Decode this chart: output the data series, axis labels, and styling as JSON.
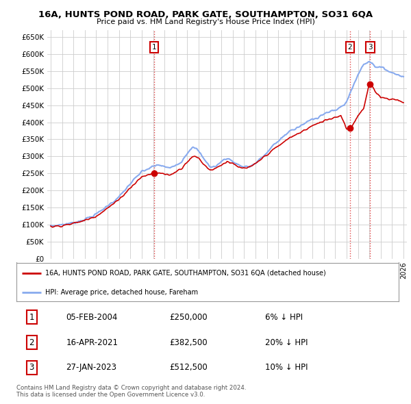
{
  "title1": "16A, HUNTS POND ROAD, PARK GATE, SOUTHAMPTON, SO31 6QA",
  "title2": "Price paid vs. HM Land Registry's House Price Index (HPI)",
  "ylabel_ticks": [
    "£0",
    "£50K",
    "£100K",
    "£150K",
    "£200K",
    "£250K",
    "£300K",
    "£350K",
    "£400K",
    "£450K",
    "£500K",
    "£550K",
    "£600K",
    "£650K"
  ],
  "ytick_values": [
    0,
    50000,
    100000,
    150000,
    200000,
    250000,
    300000,
    350000,
    400000,
    450000,
    500000,
    550000,
    600000,
    650000
  ],
  "xlim_start": 1994.7,
  "xlim_end": 2026.3,
  "ylim_min": 0,
  "ylim_max": 670000,
  "sale_dates": [
    2004.09,
    2021.29,
    2023.07
  ],
  "sale_prices": [
    250000,
    382500,
    512500
  ],
  "sale_labels": [
    "1",
    "2",
    "3"
  ],
  "vline_color": "#dd2222",
  "legend_line1": "16A, HUNTS POND ROAD, PARK GATE, SOUTHAMPTON, SO31 6QA (detached house)",
  "legend_line2": "HPI: Average price, detached house, Fareham",
  "table_rows": [
    [
      "1",
      "05-FEB-2004",
      "£250,000",
      "6% ↓ HPI"
    ],
    [
      "2",
      "16-APR-2021",
      "£382,500",
      "20% ↓ HPI"
    ],
    [
      "3",
      "27-JAN-2023",
      "£512,500",
      "10% ↓ HPI"
    ]
  ],
  "footer": "Contains HM Land Registry data © Crown copyright and database right 2024.\nThis data is licensed under the Open Government Licence v3.0.",
  "bg_color": "#ffffff",
  "plot_bg_color": "#ffffff",
  "grid_color": "#cccccc",
  "hpi_line_color": "#88aaee",
  "price_line_color": "#cc0000",
  "marker_box_color": "#cc0000",
  "fig_width": 6.0,
  "fig_height": 5.9
}
